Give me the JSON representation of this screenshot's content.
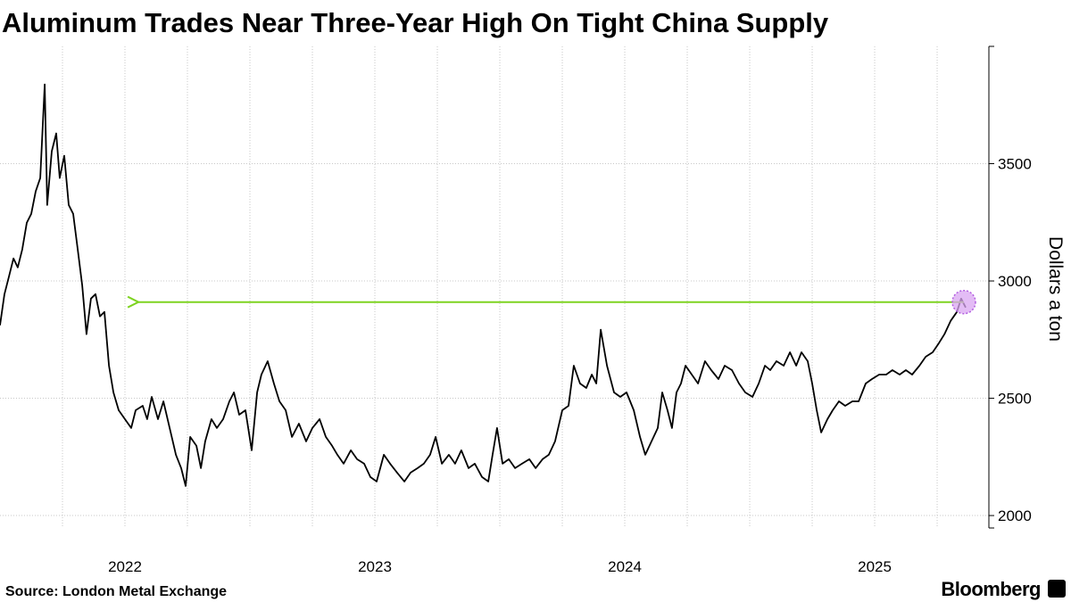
{
  "chart_data": {
    "type": "line",
    "title": "Aluminum Trades Near Three-Year High On Tight China Supply",
    "y_axis_label": "Dollars a ton",
    "source": "Source: London Metal Exchange",
    "brand": "Bloomberg",
    "color": "#000000",
    "xlim": [
      2022,
      2025.957
    ],
    "xticks": [
      {
        "value": 2022.5,
        "label": "2022"
      },
      {
        "value": 2023.5,
        "label": "2023"
      },
      {
        "value": 2024.5,
        "label": "2024"
      },
      {
        "value": 2025.5,
        "label": "2025"
      }
    ],
    "xgrid": [
      2022.25,
      2022.5,
      2022.75,
      2023,
      2023.25,
      2023.5,
      2023.75,
      2024,
      2024.25,
      2024.5,
      2024.75,
      2025,
      2025.25,
      2025.5,
      2025.75
    ],
    "ylim": [
      1947,
      4000
    ],
    "yticks": [
      2000,
      2500,
      3000,
      3500
    ],
    "grid": true,
    "annotations": [
      {
        "type": "arrow",
        "y": 2910,
        "x_from": 2025.857,
        "x_to": 2022.554,
        "color": "#7ed321"
      }
    ],
    "highlight": {
      "x": 2025.857,
      "y": 2910,
      "color": "#d9a6f2"
    },
    "x": [
      2022.0,
      2022.018,
      2022.036,
      2022.054,
      2022.071,
      2022.089,
      2022.107,
      2022.125,
      2022.143,
      2022.161,
      2022.179,
      2022.189,
      2022.207,
      2022.225,
      2022.239,
      2022.257,
      2022.275,
      2022.293,
      2022.311,
      2022.329,
      2022.346,
      2022.364,
      2022.382,
      2022.4,
      2022.418,
      2022.436,
      2022.454,
      2022.475,
      2022.5,
      2022.525,
      2022.543,
      2022.571,
      2022.589,
      2022.607,
      2022.632,
      2022.654,
      2022.679,
      2022.704,
      2022.725,
      2022.743,
      2022.761,
      2022.786,
      2022.804,
      2022.821,
      2022.846,
      2022.868,
      2022.893,
      2022.918,
      2022.936,
      2022.957,
      2022.982,
      2023.007,
      2023.029,
      2023.046,
      2023.071,
      2023.096,
      2023.118,
      2023.143,
      2023.168,
      2023.196,
      2023.225,
      2023.25,
      2023.279,
      2023.304,
      2023.329,
      2023.35,
      2023.375,
      2023.404,
      2023.429,
      2023.457,
      2023.482,
      2023.507,
      2023.536,
      2023.561,
      2023.589,
      2023.618,
      2023.643,
      2023.671,
      2023.696,
      2023.721,
      2023.743,
      2023.768,
      2023.796,
      2023.821,
      2023.846,
      2023.875,
      2023.9,
      2023.929,
      2023.954,
      2023.971,
      2023.989,
      2024.011,
      2024.036,
      2024.061,
      2024.089,
      2024.118,
      2024.143,
      2024.171,
      2024.196,
      2024.221,
      2024.25,
      2024.275,
      2024.296,
      2024.321,
      2024.346,
      2024.368,
      2024.386,
      2024.404,
      2024.429,
      2024.457,
      2024.482,
      2024.507,
      2024.536,
      2024.561,
      2024.582,
      2024.607,
      2024.632,
      2024.65,
      2024.671,
      2024.689,
      2024.707,
      2024.725,
      2024.743,
      2024.768,
      2024.793,
      2024.821,
      2024.846,
      2024.875,
      2024.9,
      2024.929,
      2024.957,
      2024.982,
      2025.011,
      2025.036,
      2025.061,
      2025.082,
      2025.107,
      2025.136,
      2025.161,
      2025.186,
      2025.207,
      2025.232,
      2025.25,
      2025.268,
      2025.286,
      2025.311,
      2025.332,
      2025.357,
      2025.382,
      2025.411,
      2025.436,
      2025.464,
      2025.489,
      2025.518,
      2025.546,
      2025.571,
      2025.6,
      2025.625,
      2025.65,
      2025.679,
      2025.704,
      2025.732,
      2025.757,
      2025.779,
      2025.804,
      2025.829,
      2025.846,
      2025.864
    ],
    "values": [
      2811,
      2944,
      3020,
      3096,
      3058,
      3134,
      3248,
      3286,
      3382,
      3439,
      3838,
      3324,
      3553,
      3629,
      3439,
      3534,
      3324,
      3286,
      3134,
      2982,
      2773,
      2925,
      2944,
      2849,
      2868,
      2639,
      2525,
      2449,
      2411,
      2373,
      2449,
      2468,
      2411,
      2506,
      2411,
      2487,
      2373,
      2259,
      2202,
      2126,
      2335,
      2297,
      2202,
      2316,
      2411,
      2373,
      2411,
      2487,
      2525,
      2430,
      2449,
      2278,
      2525,
      2601,
      2658,
      2563,
      2487,
      2449,
      2335,
      2392,
      2316,
      2373,
      2411,
      2335,
      2297,
      2259,
      2221,
      2278,
      2240,
      2221,
      2164,
      2145,
      2259,
      2221,
      2183,
      2145,
      2183,
      2202,
      2221,
      2259,
      2335,
      2221,
      2259,
      2221,
      2278,
      2202,
      2221,
      2164,
      2145,
      2259,
      2373,
      2221,
      2240,
      2202,
      2221,
      2240,
      2202,
      2240,
      2259,
      2316,
      2449,
      2468,
      2639,
      2563,
      2544,
      2601,
      2563,
      2792,
      2639,
      2525,
      2506,
      2525,
      2449,
      2335,
      2259,
      2316,
      2373,
      2525,
      2449,
      2373,
      2525,
      2563,
      2639,
      2601,
      2563,
      2658,
      2620,
      2582,
      2639,
      2620,
      2563,
      2525,
      2506,
      2563,
      2639,
      2620,
      2658,
      2639,
      2696,
      2639,
      2696,
      2658,
      2563,
      2449,
      2354,
      2411,
      2449,
      2487,
      2468,
      2487,
      2487,
      2563,
      2582,
      2601,
      2601,
      2620,
      2601,
      2620,
      2601,
      2639,
      2677,
      2696,
      2735,
      2773,
      2830,
      2868,
      2925,
      2887
    ]
  }
}
